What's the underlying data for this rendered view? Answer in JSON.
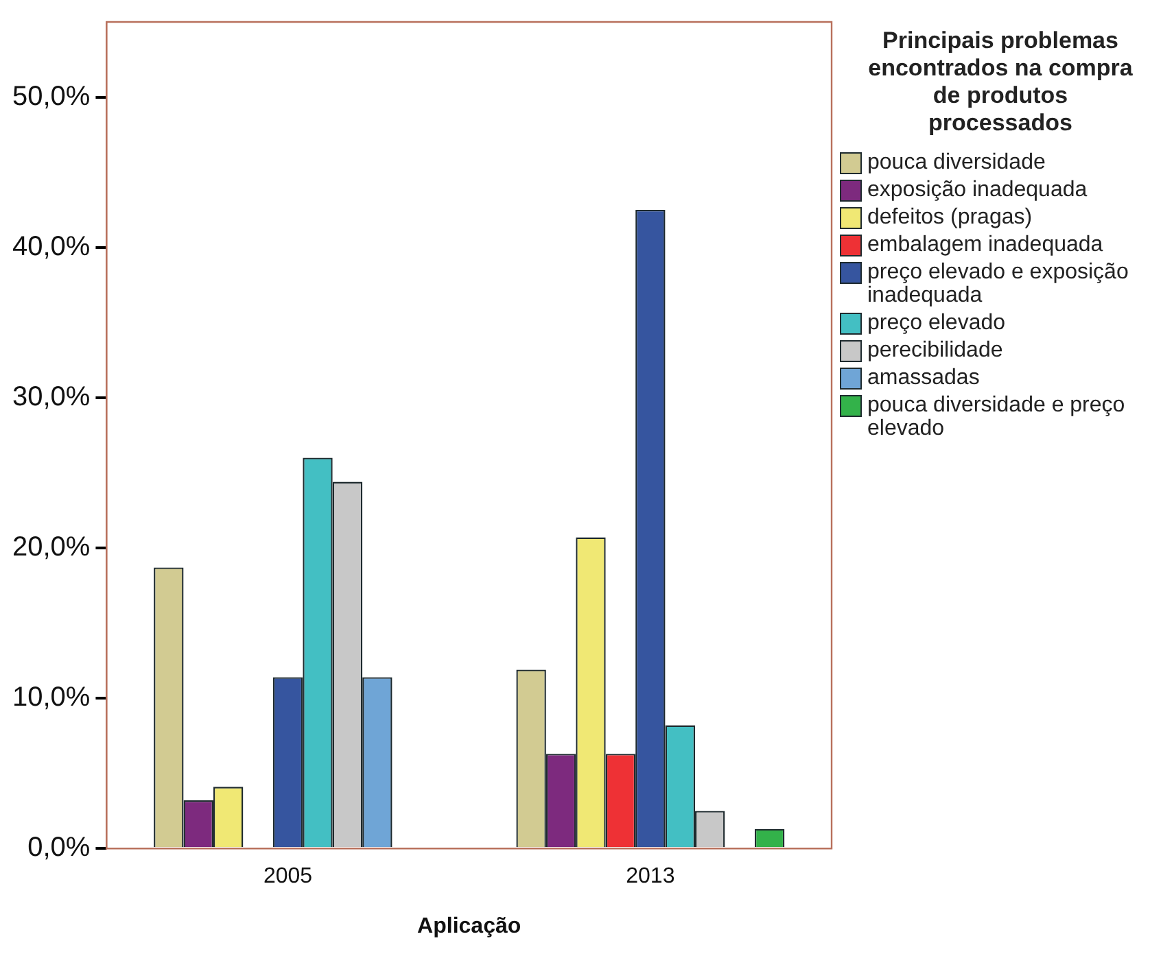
{
  "chart_data": {
    "type": "bar",
    "xlabel": "Aplicação",
    "legend_title": "Principais problemas encontrados na compra de produtos processados",
    "categories": [
      "2005",
      "2013"
    ],
    "series": [
      {
        "name": "pouca diversidade",
        "color": "#d2cb92",
        "values": [
          18.7,
          11.9
        ]
      },
      {
        "name": "exposição inadequada",
        "color": "#7d2a7e",
        "values": [
          3.2,
          6.3
        ]
      },
      {
        "name": "defeitos (pragas)",
        "color": "#f0e874",
        "values": [
          4.1,
          20.7
        ]
      },
      {
        "name": "embalagem inadequada",
        "color": "#ee3135",
        "values": [
          0,
          6.3
        ]
      },
      {
        "name": "preço elevado e exposição inadequada",
        "color": "#36559f",
        "values": [
          11.4,
          42.5
        ]
      },
      {
        "name": "preço elevado",
        "color": "#43bfc3",
        "values": [
          26.0,
          8.2
        ]
      },
      {
        "name": "perecibilidade",
        "color": "#c8c8c8",
        "values": [
          24.4,
          2.5
        ]
      },
      {
        "name": "amassadas",
        "color": "#6fa5d6",
        "values": [
          11.4,
          0
        ]
      },
      {
        "name": "pouca diversidade e preço elevado",
        "color": "#33b24a",
        "values": [
          0,
          1.3
        ]
      }
    ],
    "ylim": [
      0,
      55
    ],
    "yticks": [
      {
        "value": 0,
        "label": "0,0%"
      },
      {
        "value": 10,
        "label": "10,0%"
      },
      {
        "value": 20,
        "label": "20,0%"
      },
      {
        "value": 30,
        "label": "30,0%"
      },
      {
        "value": 40,
        "label": "40,0%"
      },
      {
        "value": 50,
        "label": "50,0%"
      }
    ],
    "grid": false,
    "legend": "right"
  }
}
